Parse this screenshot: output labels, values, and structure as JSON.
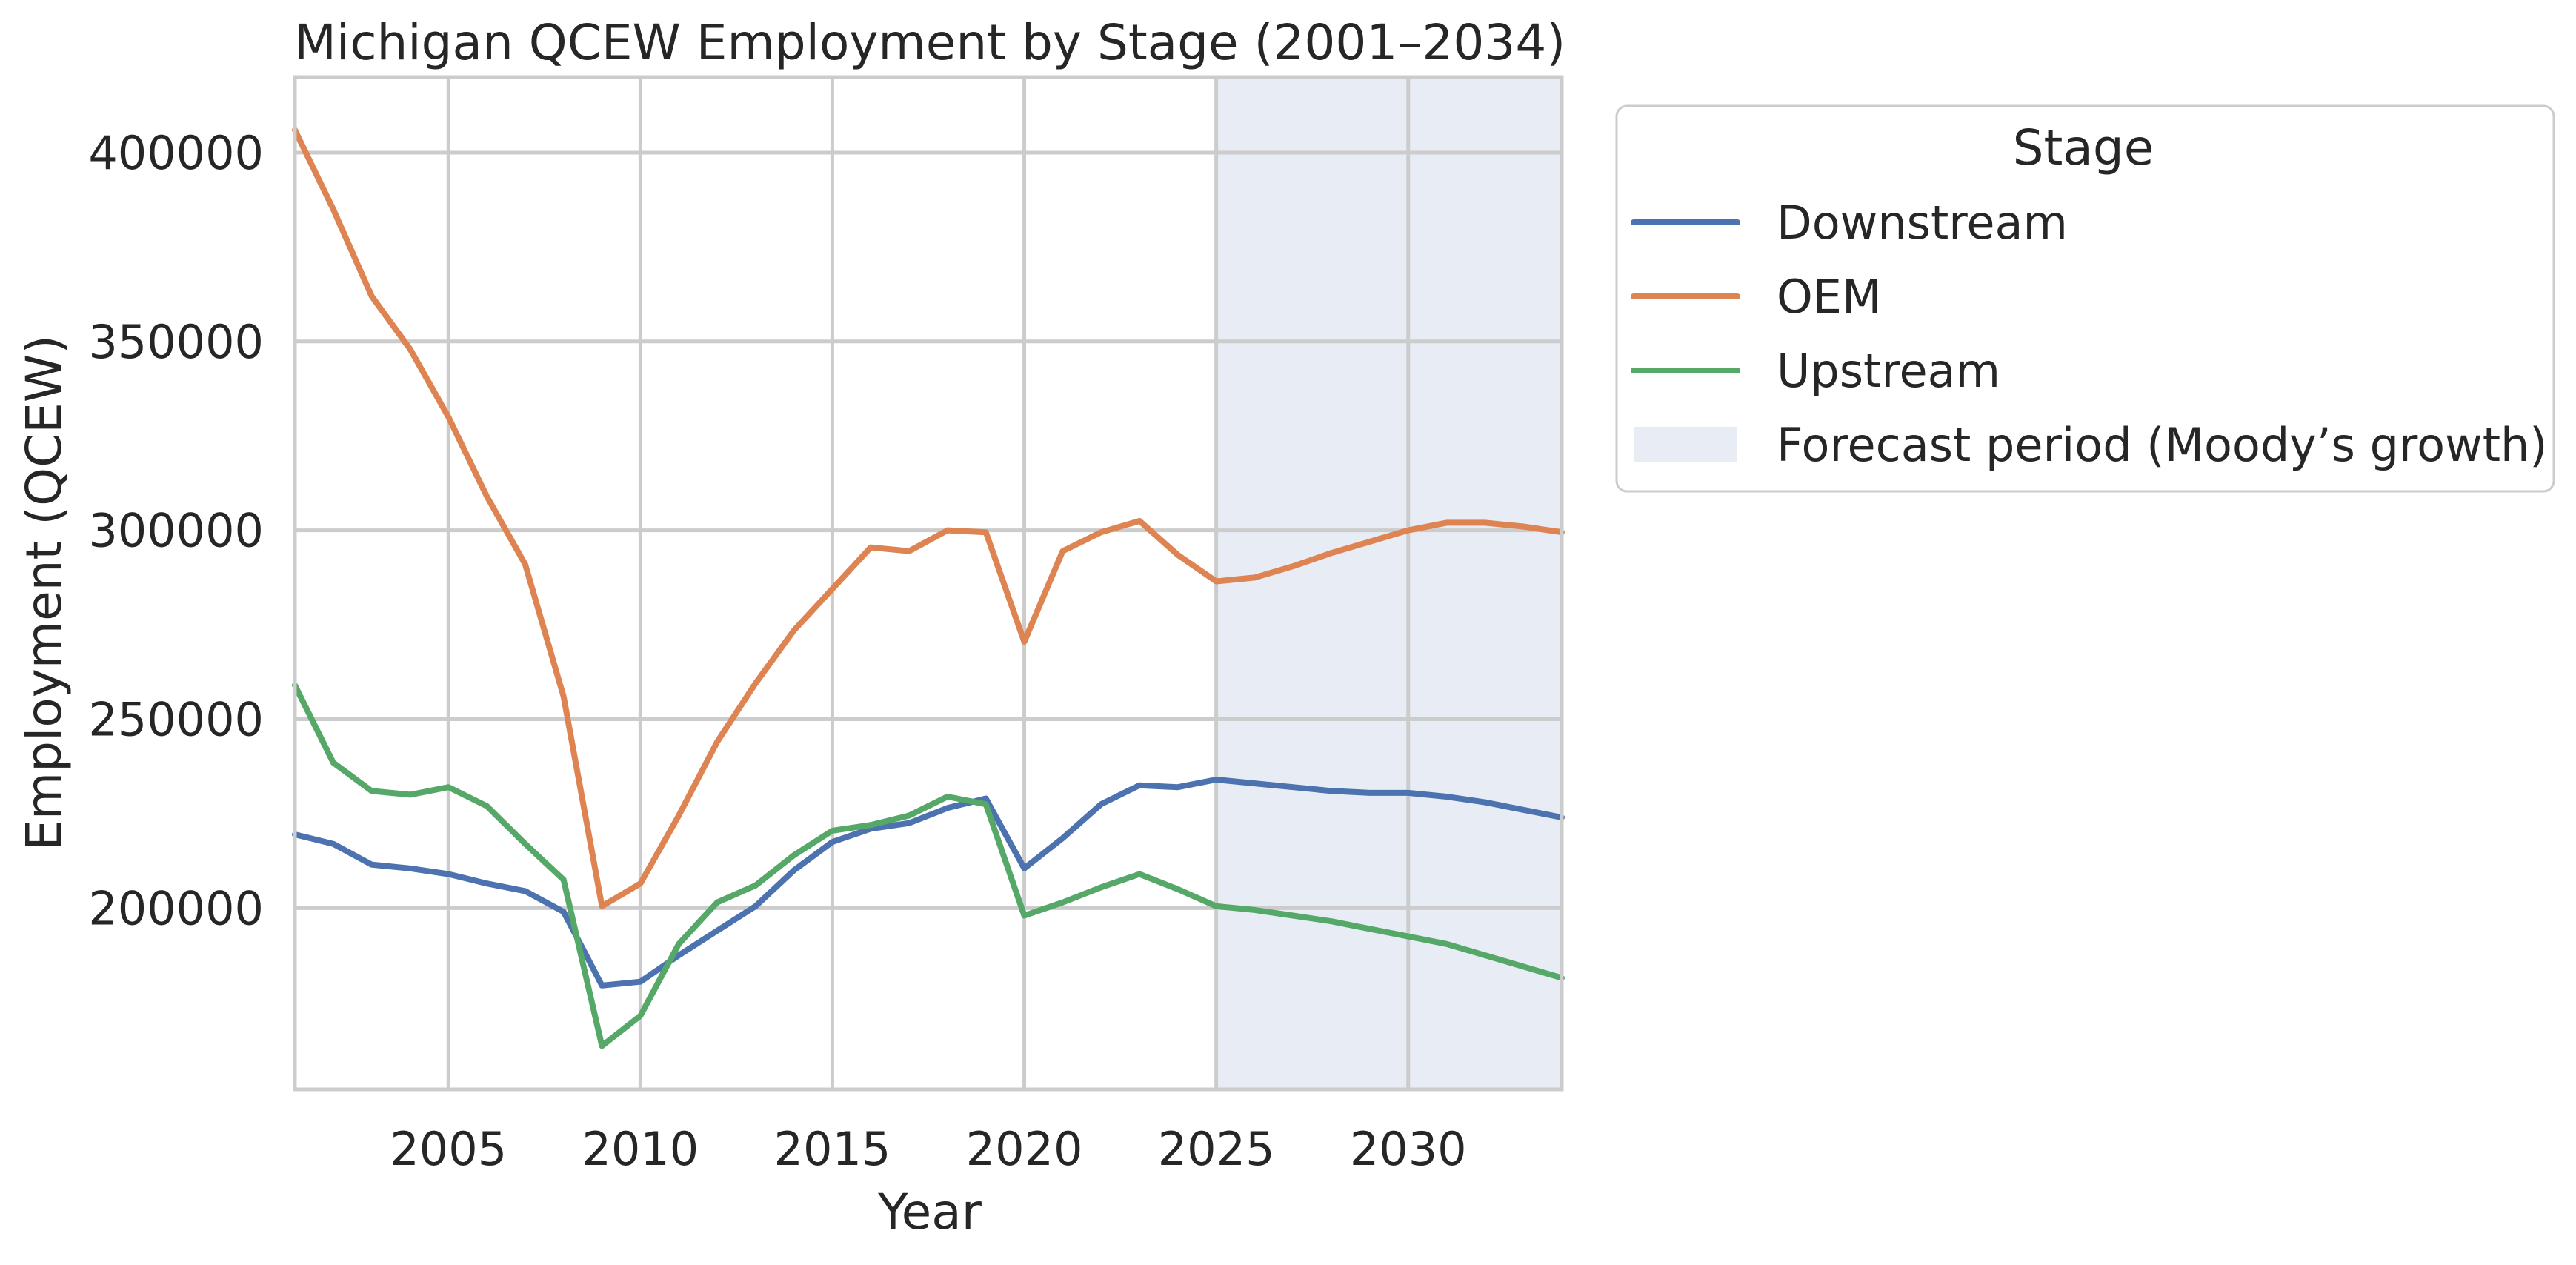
{
  "chart_data": {
    "type": "line",
    "title": "Michigan QCEW Employment by Stage (2001–2034)",
    "xlabel": "Year",
    "ylabel": "Employment (QCEW)",
    "xlim": [
      2001,
      2034
    ],
    "ylim": [
      152000,
      420000
    ],
    "xticks": [
      2005,
      2010,
      2015,
      2020,
      2025,
      2030
    ],
    "yticks": [
      200000,
      250000,
      300000,
      350000,
      400000
    ],
    "grid": true,
    "legend": {
      "title": "Stage",
      "position": "outside-upper-right"
    },
    "x": [
      2001,
      2002,
      2003,
      2004,
      2005,
      2006,
      2007,
      2008,
      2009,
      2010,
      2011,
      2012,
      2013,
      2014,
      2015,
      2016,
      2017,
      2018,
      2019,
      2020,
      2021,
      2022,
      2023,
      2024,
      2025,
      2026,
      2027,
      2028,
      2029,
      2030,
      2031,
      2032,
      2033,
      2034
    ],
    "series": [
      {
        "name": "Downstream",
        "color": "#4c72b0",
        "values": [
          219500,
          217000,
          211500,
          210500,
          209000,
          206500,
          204500,
          199000,
          179500,
          180500,
          187500,
          194000,
          200500,
          210000,
          217500,
          221000,
          222500,
          226500,
          229000,
          210500,
          218500,
          227500,
          232500,
          232000,
          234000,
          233000,
          232000,
          231000,
          230500,
          230500,
          229500,
          228000,
          226000,
          224000
        ]
      },
      {
        "name": "OEM",
        "color": "#dd8452",
        "values": [
          406000,
          385000,
          362000,
          348000,
          330000,
          309000,
          291000,
          256000,
          200500,
          206500,
          224500,
          244000,
          259500,
          273500,
          284500,
          295500,
          294500,
          300000,
          299500,
          270500,
          294500,
          299500,
          302500,
          293500,
          286500,
          287500,
          290500,
          294000,
          297000,
          300000,
          302000,
          302000,
          301000,
          299500
        ]
      },
      {
        "name": "Upstream",
        "color": "#55a868",
        "values": [
          259000,
          238500,
          231000,
          230000,
          232000,
          227000,
          217000,
          207500,
          163500,
          171500,
          190500,
          201500,
          206000,
          214000,
          220500,
          222000,
          224500,
          229500,
          227500,
          198000,
          201500,
          205500,
          209000,
          205000,
          200500,
          199500,
          198000,
          196500,
          194500,
          192500,
          190500,
          187500,
          184500,
          181500
        ]
      }
    ],
    "forecast_band": {
      "label": "Forecast period (Moody’s growth)",
      "x_start": 2025,
      "x_end": 2034,
      "color": "#e8ecf5"
    }
  }
}
